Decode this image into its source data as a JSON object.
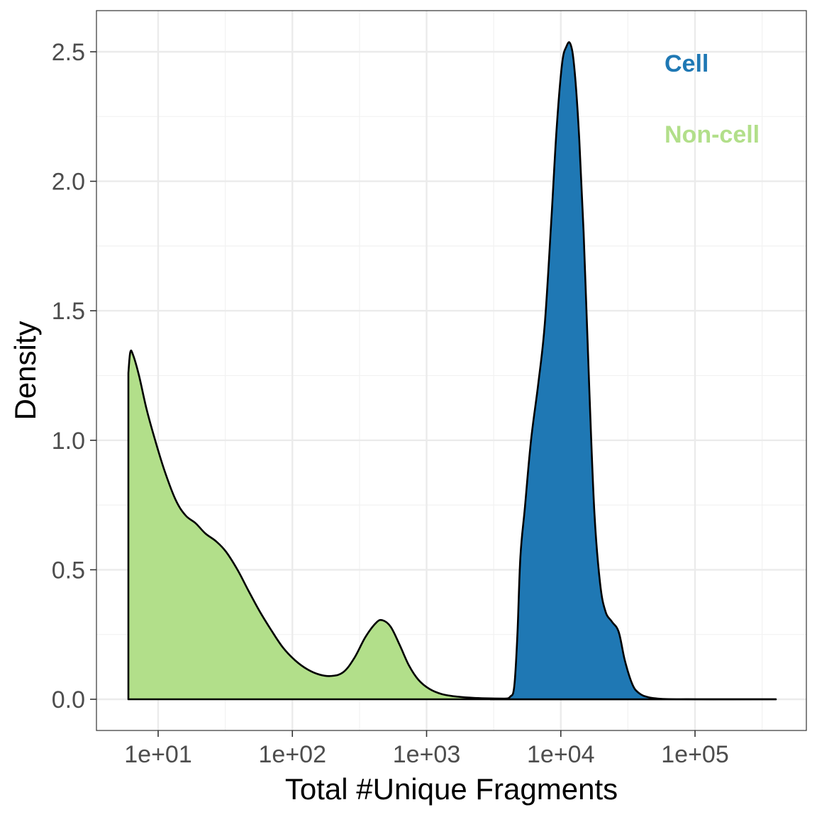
{
  "chart_data": {
    "type": "area",
    "title": "",
    "xlabel": "Total #Unique Fragments",
    "ylabel": "Density",
    "x_scale": "log10",
    "xlim": [
      10,
      500000
    ],
    "ylim": [
      -0.12,
      2.65
    ],
    "x_ticks": [
      10,
      100,
      1000,
      10000,
      100000
    ],
    "x_tick_labels": [
      "1e+01",
      "1e+02",
      "1e+03",
      "1e+04",
      "1e+05"
    ],
    "y_ticks": [
      0,
      0.5,
      1,
      1.5,
      2,
      2.5
    ],
    "y_tick_labels": [
      "0.0",
      "0.5",
      "1.0",
      "1.5",
      "2.0",
      "2.5"
    ],
    "grid": true,
    "legend_placement": "top-right",
    "series": [
      {
        "name": "Non-cell",
        "color": "#b2df8a",
        "points": [
          [
            6.0,
            0
          ],
          [
            6.0,
            1.26
          ],
          [
            6.2,
            1.34
          ],
          [
            6.5,
            1.33
          ],
          [
            7.2,
            1.25
          ],
          [
            8.2,
            1.12
          ],
          [
            9.5,
            1.0
          ],
          [
            11.2,
            0.88
          ],
          [
            13.5,
            0.77
          ],
          [
            16.0,
            0.71
          ],
          [
            19.0,
            0.68
          ],
          [
            22.5,
            0.64
          ],
          [
            27.0,
            0.61
          ],
          [
            32.0,
            0.57
          ],
          [
            39.0,
            0.5
          ],
          [
            47.0,
            0.42
          ],
          [
            57.0,
            0.34
          ],
          [
            69.0,
            0.27
          ],
          [
            85.0,
            0.2
          ],
          [
            105.0,
            0.15
          ],
          [
            130.0,
            0.115
          ],
          [
            160.0,
            0.095
          ],
          [
            195.0,
            0.09
          ],
          [
            240.0,
            0.105
          ],
          [
            290.0,
            0.16
          ],
          [
            350.0,
            0.24
          ],
          [
            420.0,
            0.295
          ],
          [
            470.0,
            0.305
          ],
          [
            540.0,
            0.28
          ],
          [
            630.0,
            0.21
          ],
          [
            740.0,
            0.13
          ],
          [
            870.0,
            0.075
          ],
          [
            1050.0,
            0.04
          ],
          [
            1300.0,
            0.02
          ],
          [
            1700.0,
            0.01
          ],
          [
            2300.0,
            0.005
          ],
          [
            3200.0,
            0.003
          ],
          [
            4500.0,
            0.002
          ],
          [
            6500.0,
            0.001
          ],
          [
            10000.0,
            0.001
          ],
          [
            20000.0,
            0.0005
          ],
          [
            60000.0,
            0.0
          ],
          [
            400000.0,
            0.0
          ]
        ]
      },
      {
        "name": "Cell",
        "color": "#1f78b4",
        "points": [
          [
            3000.0,
            0.0
          ],
          [
            3800.0,
            0.002
          ],
          [
            4200.0,
            0.01
          ],
          [
            4500.0,
            0.05
          ],
          [
            4750.0,
            0.25
          ],
          [
            5000.0,
            0.55
          ],
          [
            5400.0,
            0.74
          ],
          [
            6000.0,
            1.0
          ],
          [
            6800.0,
            1.22
          ],
          [
            7600.0,
            1.45
          ],
          [
            8500.0,
            1.85
          ],
          [
            9300.0,
            2.2
          ],
          [
            10200.0,
            2.45
          ],
          [
            11000.0,
            2.52
          ],
          [
            11800.0,
            2.53
          ],
          [
            12600.0,
            2.44
          ],
          [
            13600.0,
            2.2
          ],
          [
            14800.0,
            1.8
          ],
          [
            16300.0,
            1.2
          ],
          [
            17800.0,
            0.72
          ],
          [
            19600.0,
            0.45
          ],
          [
            21500.0,
            0.34
          ],
          [
            24000.0,
            0.3
          ],
          [
            27000.0,
            0.26
          ],
          [
            30000.0,
            0.15
          ],
          [
            34000.0,
            0.06
          ],
          [
            38000.0,
            0.025
          ],
          [
            45000.0,
            0.008
          ],
          [
            60000.0,
            0.001
          ],
          [
            100000.0,
            0.0
          ],
          [
            400000.0,
            0.0
          ]
        ]
      }
    ]
  }
}
